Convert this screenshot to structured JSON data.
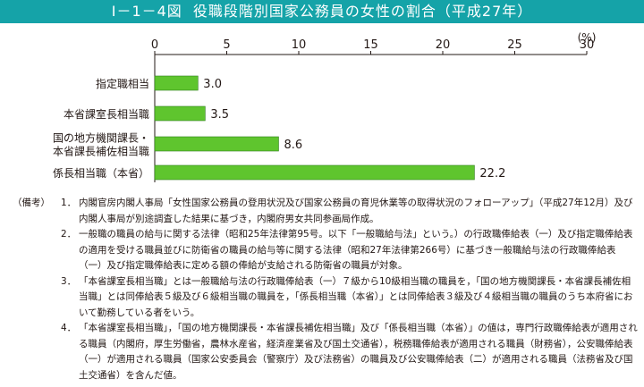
{
  "figure": {
    "number": "I－1－4図",
    "title": "役職段階別国家公務員の女性の割合（平成27年）"
  },
  "chart_data": {
    "type": "bar",
    "orientation": "horizontal",
    "unit_label": "(%)",
    "xlim": [
      0,
      30
    ],
    "ticks": [
      0,
      5,
      10,
      15,
      20,
      25,
      30
    ],
    "categories": [
      [
        "指定職相当"
      ],
      [
        "本省課室長相当職"
      ],
      [
        "国の地方機関課長・",
        "本省課長補佐相当職"
      ],
      [
        "係長相当職（本省）"
      ]
    ],
    "values": [
      3.0,
      3.5,
      8.6,
      22.2
    ],
    "value_labels": [
      "3.0",
      "3.5",
      "8.6",
      "22.2"
    ],
    "bar_color": "#5fc52e",
    "grid": false
  },
  "notes": {
    "heading": "（備考）",
    "items": [
      {
        "num": "1．",
        "text": "内閣官房内閣人事局「女性国家公務員の登用状況及び国家公務員の育児休業等の取得状況のフォローアップ」（平成27年12月）及び内閣人事局が別途調査した結果に基づき，内閣府男女共同参画局作成。"
      },
      {
        "num": "2．",
        "text": "一般職の職員の給与に関する法律（昭和25年法律第95号。以下「一般職給与法」という。）の行政職俸給表（一）及び指定職俸給表の適用を受ける職員並びに防衛省の職員の給与等に関する法律（昭和27年法律第266号）に基づき一般職給与法の行政職俸給表（一）及び指定職俸給表に定める額の俸給が支給される防衛省の職員が対象。"
      },
      {
        "num": "3．",
        "text": "「本省課室長相当職」とは一般職給与法の行政職俸給表（一）７級から10級相当職の職員を，「国の地方機関課長・本省課長補佐相当職」とは同俸給表５級及び６級相当職の職員を，「係長相当職（本省）」とは同俸給表３級及び４級相当職の職員のうち本府省において勤務している者をいう。"
      },
      {
        "num": "4．",
        "text": "「本省課室長相当職」，「国の地方機関課長・本省課長補佐相当職」及び「係長相当職（本省）」の値は，専門行政職俸給表が適用される職員（内閣府，厚生労働省，農林水産省，経済産業省及び国土交通省），税務職俸給表が適用される職員（財務省），公安職俸給表（一）が適用される職員（国家公安委員会（警察庁）及び法務省）の職員及び公安職俸給表（二）が適用される職員（法務省及び国土交通省）を含んだ値。"
      }
    ]
  }
}
